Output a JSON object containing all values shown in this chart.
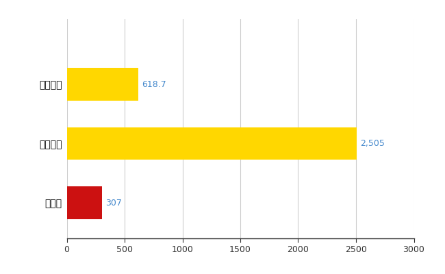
{
  "categories": [
    "滋賀県",
    "全国最大",
    "全国平均"
  ],
  "values": [
    307,
    2505,
    618.7
  ],
  "bar_colors": [
    "#CC1111",
    "#FFD700",
    "#FFD700"
  ],
  "value_labels": [
    "307",
    "2,505",
    "618.7"
  ],
  "xlim": [
    0,
    3000
  ],
  "xticks": [
    0,
    500,
    1000,
    1500,
    2000,
    2500,
    3000
  ],
  "background_color": "#ffffff",
  "grid_color": "#cccccc",
  "label_color": "#4488cc",
  "bar_height": 0.55
}
